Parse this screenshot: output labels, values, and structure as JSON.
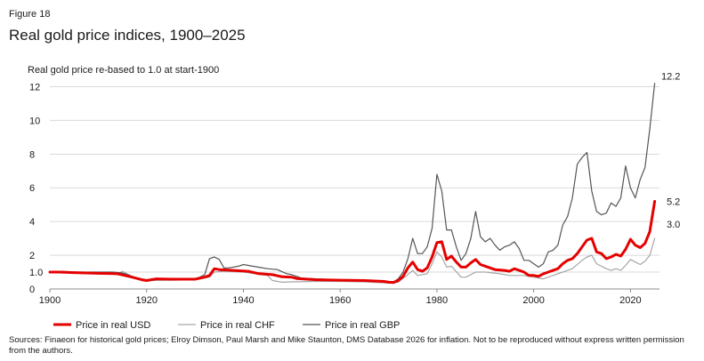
{
  "figure_label": "Figure 18",
  "source_note": "Sources: Finaeon for historical gold prices; Elroy Dimson, Paul Marsh and Mike Staunton, DMS Database 2026 for inflation. Not to be reproduced without express written permission from the authors.",
  "chart_data": {
    "type": "line",
    "title": "Real gold price indices, 1900–2025",
    "ylabel": "Real gold price re-based to 1.0 at start-1900",
    "xlabel": "",
    "xlim": [
      1900,
      2026
    ],
    "ylim": [
      0,
      12.5
    ],
    "x_ticks": [
      1900,
      1920,
      1940,
      1960,
      1980,
      2000,
      2020
    ],
    "y_ticks": [
      0,
      1,
      2,
      4,
      6,
      8,
      10,
      12
    ],
    "y_tick_labels": [
      "0",
      "1.0",
      "2",
      "4",
      "6",
      "8",
      "10",
      "12"
    ],
    "grid": "horizontal",
    "legend_position": "bottom",
    "series": [
      {
        "name": "Price in real USD",
        "color": "#e60000",
        "end_label": "5.2",
        "points": [
          [
            1900,
            1.0
          ],
          [
            1902,
            1.0
          ],
          [
            1905,
            0.97
          ],
          [
            1910,
            0.93
          ],
          [
            1914,
            0.9
          ],
          [
            1917,
            0.7
          ],
          [
            1919,
            0.55
          ],
          [
            1920,
            0.5
          ],
          [
            1922,
            0.6
          ],
          [
            1925,
            0.58
          ],
          [
            1930,
            0.58
          ],
          [
            1932,
            0.7
          ],
          [
            1933,
            0.8
          ],
          [
            1934,
            1.2
          ],
          [
            1935,
            1.15
          ],
          [
            1938,
            1.1
          ],
          [
            1941,
            1.05
          ],
          [
            1943,
            0.92
          ],
          [
            1946,
            0.85
          ],
          [
            1948,
            0.72
          ],
          [
            1950,
            0.7
          ],
          [
            1951,
            0.62
          ],
          [
            1955,
            0.55
          ],
          [
            1960,
            0.52
          ],
          [
            1965,
            0.5
          ],
          [
            1969,
            0.45
          ],
          [
            1970,
            0.4
          ],
          [
            1971,
            0.38
          ],
          [
            1972,
            0.5
          ],
          [
            1973,
            0.75
          ],
          [
            1974,
            1.25
          ],
          [
            1975,
            1.6
          ],
          [
            1976,
            1.15
          ],
          [
            1977,
            1.05
          ],
          [
            1978,
            1.25
          ],
          [
            1979,
            1.9
          ],
          [
            1980,
            2.75
          ],
          [
            1981,
            2.8
          ],
          [
            1982,
            1.75
          ],
          [
            1983,
            1.95
          ],
          [
            1984,
            1.6
          ],
          [
            1985,
            1.3
          ],
          [
            1986,
            1.3
          ],
          [
            1987,
            1.55
          ],
          [
            1988,
            1.75
          ],
          [
            1989,
            1.45
          ],
          [
            1990,
            1.35
          ],
          [
            1992,
            1.15
          ],
          [
            1994,
            1.1
          ],
          [
            1995,
            1.05
          ],
          [
            1996,
            1.2
          ],
          [
            1997,
            1.1
          ],
          [
            1998,
            1.0
          ],
          [
            1999,
            0.8
          ],
          [
            2000,
            0.8
          ],
          [
            2001,
            0.75
          ],
          [
            2002,
            0.9
          ],
          [
            2003,
            1.0
          ],
          [
            2004,
            1.1
          ],
          [
            2005,
            1.2
          ],
          [
            2006,
            1.5
          ],
          [
            2007,
            1.7
          ],
          [
            2008,
            1.8
          ],
          [
            2009,
            2.1
          ],
          [
            2010,
            2.5
          ],
          [
            2011,
            2.9
          ],
          [
            2012,
            3.0
          ],
          [
            2013,
            2.2
          ],
          [
            2014,
            2.1
          ],
          [
            2015,
            1.8
          ],
          [
            2016,
            1.9
          ],
          [
            2017,
            2.05
          ],
          [
            2018,
            1.95
          ],
          [
            2019,
            2.35
          ],
          [
            2020,
            2.95
          ],
          [
            2021,
            2.6
          ],
          [
            2022,
            2.45
          ],
          [
            2023,
            2.7
          ],
          [
            2024,
            3.4
          ],
          [
            2025,
            5.2
          ]
        ]
      },
      {
        "name": "Price in real CHF",
        "color": "#a6a6a6",
        "end_label": "3.0",
        "points": [
          [
            1900,
            1.0
          ],
          [
            1905,
            0.97
          ],
          [
            1910,
            0.93
          ],
          [
            1914,
            0.9
          ],
          [
            1915,
            1.05
          ],
          [
            1917,
            0.75
          ],
          [
            1920,
            0.5
          ],
          [
            1925,
            0.52
          ],
          [
            1930,
            0.55
          ],
          [
            1933,
            0.7
          ],
          [
            1934,
            1.0
          ],
          [
            1936,
            1.05
          ],
          [
            1940,
            1.0
          ],
          [
            1945,
            0.8
          ],
          [
            1946,
            0.5
          ],
          [
            1948,
            0.4
          ],
          [
            1950,
            0.42
          ],
          [
            1955,
            0.45
          ],
          [
            1960,
            0.45
          ],
          [
            1965,
            0.42
          ],
          [
            1970,
            0.35
          ],
          [
            1972,
            0.4
          ],
          [
            1974,
            0.85
          ],
          [
            1975,
            1.1
          ],
          [
            1976,
            0.8
          ],
          [
            1978,
            0.9
          ],
          [
            1979,
            1.5
          ],
          [
            1980,
            2.2
          ],
          [
            1981,
            1.9
          ],
          [
            1982,
            1.3
          ],
          [
            1983,
            1.35
          ],
          [
            1985,
            0.7
          ],
          [
            1986,
            0.7
          ],
          [
            1988,
            1.0
          ],
          [
            1990,
            1.0
          ],
          [
            1993,
            0.9
          ],
          [
            1995,
            0.8
          ],
          [
            1998,
            0.8
          ],
          [
            2000,
            0.7
          ],
          [
            2002,
            0.6
          ],
          [
            2004,
            0.8
          ],
          [
            2006,
            1.0
          ],
          [
            2008,
            1.2
          ],
          [
            2010,
            1.7
          ],
          [
            2011,
            1.9
          ],
          [
            2012,
            2.0
          ],
          [
            2013,
            1.5
          ],
          [
            2015,
            1.2
          ],
          [
            2016,
            1.1
          ],
          [
            2017,
            1.2
          ],
          [
            2018,
            1.1
          ],
          [
            2019,
            1.4
          ],
          [
            2020,
            1.75
          ],
          [
            2021,
            1.6
          ],
          [
            2022,
            1.45
          ],
          [
            2023,
            1.65
          ],
          [
            2024,
            2.0
          ],
          [
            2025,
            3.0
          ]
        ]
      },
      {
        "name": "Price in real GBP",
        "color": "#555555",
        "end_label": "12.2",
        "points": [
          [
            1900,
            1.0
          ],
          [
            1902,
            1.05
          ],
          [
            1905,
            1.0
          ],
          [
            1910,
            1.0
          ],
          [
            1913,
            1.0
          ],
          [
            1915,
            0.95
          ],
          [
            1916,
            0.85
          ],
          [
            1918,
            0.65
          ],
          [
            1920,
            0.55
          ],
          [
            1922,
            0.6
          ],
          [
            1925,
            0.55
          ],
          [
            1930,
            0.6
          ],
          [
            1931,
            0.7
          ],
          [
            1932,
            0.85
          ],
          [
            1933,
            1.8
          ],
          [
            1934,
            1.9
          ],
          [
            1935,
            1.75
          ],
          [
            1936,
            1.25
          ],
          [
            1937,
            1.25
          ],
          [
            1939,
            1.35
          ],
          [
            1940,
            1.45
          ],
          [
            1941,
            1.4
          ],
          [
            1943,
            1.3
          ],
          [
            1945,
            1.2
          ],
          [
            1947,
            1.15
          ],
          [
            1949,
            0.9
          ],
          [
            1950,
            0.85
          ],
          [
            1952,
            0.65
          ],
          [
            1955,
            0.6
          ],
          [
            1960,
            0.55
          ],
          [
            1965,
            0.5
          ],
          [
            1969,
            0.48
          ],
          [
            1970,
            0.45
          ],
          [
            1971,
            0.42
          ],
          [
            1972,
            0.6
          ],
          [
            1973,
            1.0
          ],
          [
            1974,
            1.8
          ],
          [
            1975,
            3.0
          ],
          [
            1976,
            2.1
          ],
          [
            1977,
            2.1
          ],
          [
            1978,
            2.5
          ],
          [
            1979,
            3.6
          ],
          [
            1980,
            6.8
          ],
          [
            1981,
            5.8
          ],
          [
            1982,
            3.5
          ],
          [
            1983,
            3.5
          ],
          [
            1984,
            2.5
          ],
          [
            1985,
            1.7
          ],
          [
            1986,
            2.1
          ],
          [
            1987,
            3.0
          ],
          [
            1988,
            4.6
          ],
          [
            1989,
            3.1
          ],
          [
            1990,
            2.8
          ],
          [
            1991,
            3.0
          ],
          [
            1992,
            2.6
          ],
          [
            1993,
            2.3
          ],
          [
            1994,
            2.5
          ],
          [
            1995,
            2.6
          ],
          [
            1996,
            2.8
          ],
          [
            1997,
            2.4
          ],
          [
            1998,
            1.7
          ],
          [
            1999,
            1.7
          ],
          [
            2000,
            1.5
          ],
          [
            2001,
            1.3
          ],
          [
            2002,
            1.5
          ],
          [
            2003,
            2.2
          ],
          [
            2004,
            2.3
          ],
          [
            2005,
            2.6
          ],
          [
            2006,
            3.8
          ],
          [
            2007,
            4.3
          ],
          [
            2008,
            5.4
          ],
          [
            2009,
            7.4
          ],
          [
            2010,
            7.8
          ],
          [
            2011,
            8.1
          ],
          [
            2012,
            5.8
          ],
          [
            2013,
            4.6
          ],
          [
            2014,
            4.4
          ],
          [
            2015,
            4.5
          ],
          [
            2016,
            5.1
          ],
          [
            2017,
            4.9
          ],
          [
            2018,
            5.4
          ],
          [
            2019,
            7.3
          ],
          [
            2020,
            6.0
          ],
          [
            2021,
            5.4
          ],
          [
            2022,
            6.5
          ],
          [
            2023,
            7.2
          ],
          [
            2024,
            9.5
          ],
          [
            2025,
            12.2
          ]
        ]
      }
    ]
  }
}
